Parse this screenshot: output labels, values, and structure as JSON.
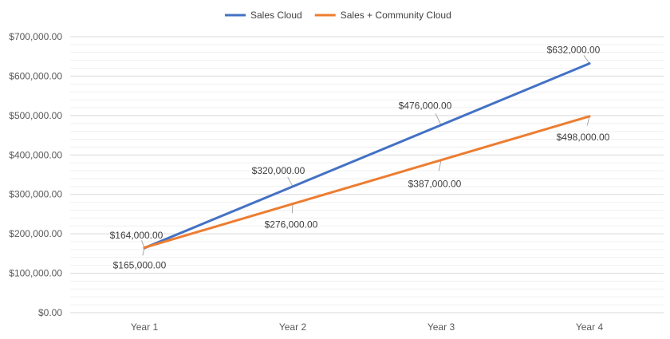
{
  "chart_data": {
    "type": "line",
    "categories": [
      "Year 1",
      "Year 2",
      "Year 3",
      "Year 4"
    ],
    "series": [
      {
        "name": "Sales Cloud",
        "color": "#4472C4",
        "values": [
          164000,
          320000,
          476000,
          632000
        ],
        "value_labels": [
          "$164,000.00",
          "$320,000.00",
          "$476,000.00",
          "$632,000.00"
        ]
      },
      {
        "name": "Sales + Community Cloud",
        "color": "#ED7D31",
        "values": [
          165000,
          276000,
          387000,
          498000
        ],
        "value_labels": [
          "$165,000.00",
          "$276,000.00",
          "$387,000.00",
          "$498,000.00"
        ]
      }
    ],
    "ylim": [
      0,
      700000
    ],
    "y_ticks": [
      0,
      100000,
      200000,
      300000,
      400000,
      500000,
      600000,
      700000
    ],
    "y_tick_labels": [
      "$0.00",
      "$100,000.00",
      "$200,000.00",
      "$300,000.00",
      "$400,000.00",
      "$500,000.00",
      "$600,000.00",
      "$700,000.00"
    ],
    "grid": true,
    "minor_grid": true,
    "legend": "top-center",
    "title": "",
    "xlabel": "",
    "ylabel": ""
  }
}
